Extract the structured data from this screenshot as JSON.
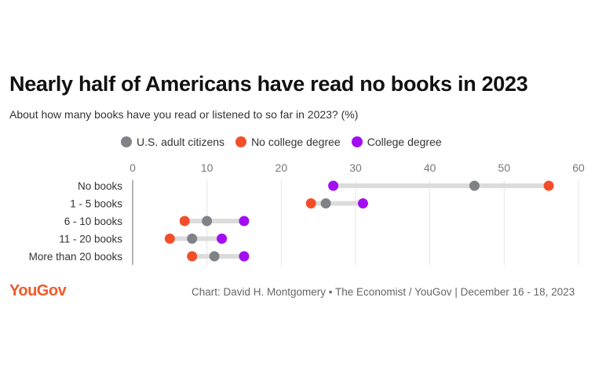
{
  "chart_data": {
    "type": "dot",
    "title": "Nearly half of Americans have read no books in 2023",
    "subtitle": "About how many books have you read or listened to so far in 2023? (%)",
    "categories": [
      "No books",
      "1 - 5 books",
      "6 - 10 books",
      "11 - 20 books",
      "More than 20 books"
    ],
    "series": [
      {
        "name": "U.S. adult citizens",
        "color": "#7f8287",
        "values": [
          46,
          26,
          10,
          8,
          11
        ]
      },
      {
        "name": "No college degree",
        "color": "#f24e2a",
        "values": [
          56,
          24,
          7,
          5,
          8
        ]
      },
      {
        "name": "College degree",
        "color": "#a20df2",
        "values": [
          27,
          31,
          15,
          12,
          15
        ]
      }
    ],
    "xlim": [
      0,
      60
    ],
    "xticks": [
      0,
      10,
      20,
      30,
      40,
      50,
      60
    ],
    "legend_position": "top",
    "grid": "vertical"
  },
  "branding": {
    "logo_text": "YouGov",
    "credit": "Chart: David H. Montgomery • The Economist / YouGov | December 16 - 18, 2023"
  }
}
